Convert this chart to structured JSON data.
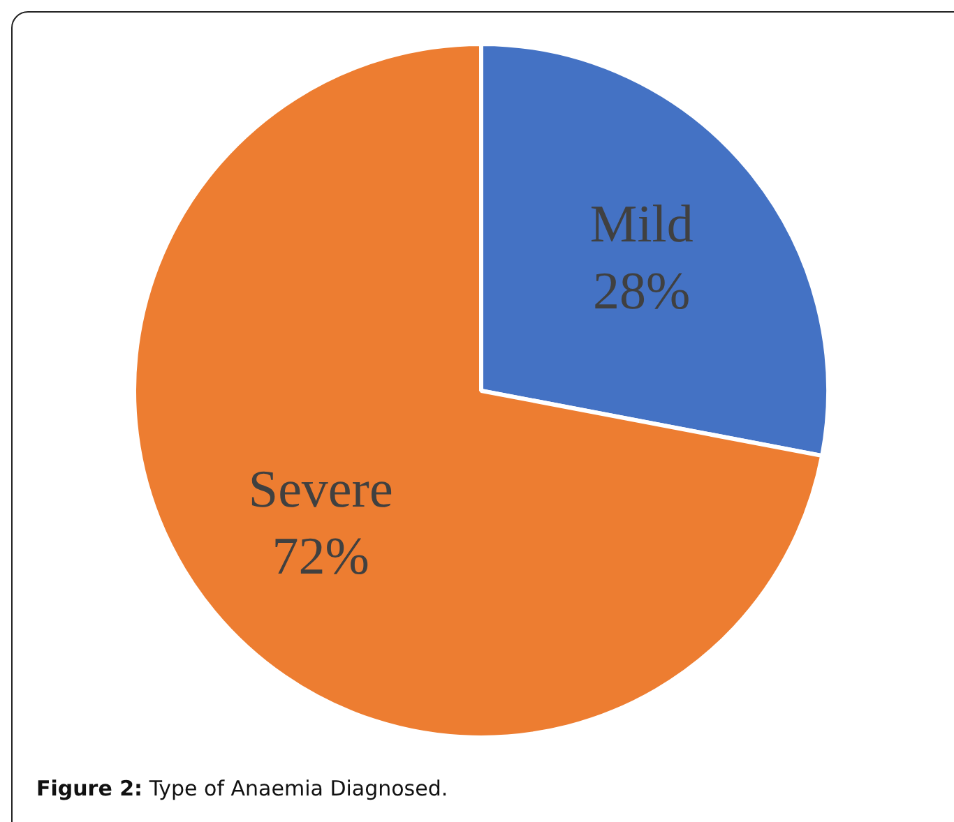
{
  "chart_data": {
    "type": "pie",
    "categories": [
      "Mild",
      "Severe"
    ],
    "values": [
      28,
      72
    ],
    "colors": [
      "#4472c4",
      "#ed7d31"
    ],
    "value_labels": [
      "28%",
      "72%"
    ],
    "legend": false,
    "annotations": [
      "Figure 2: Type of Anaemia Diagnosed."
    ]
  }
}
